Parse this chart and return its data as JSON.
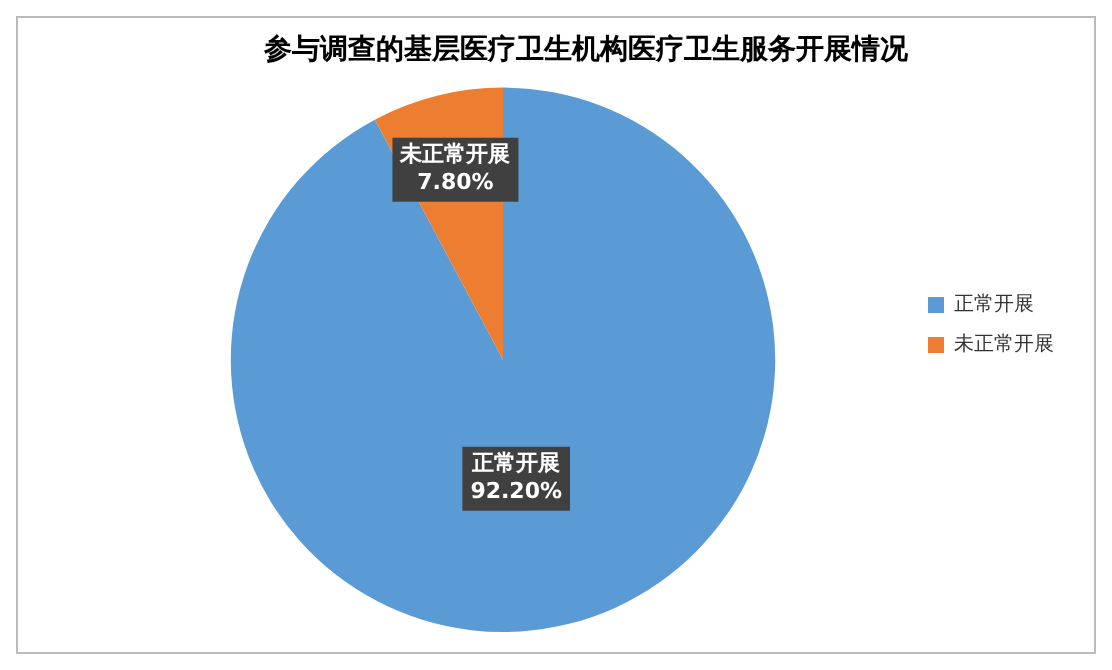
{
  "chart_data": {
    "type": "pie",
    "title": "参与调查的基层医疗卫生机构医疗卫生服务开展情况",
    "categories": [
      "正常开展",
      "未正常开展"
    ],
    "values": [
      92.2,
      7.8
    ],
    "value_labels": [
      "92.20%",
      "7.80%"
    ],
    "colors": [
      "#5b9bd5",
      "#ed7d31"
    ],
    "legend": "right"
  }
}
